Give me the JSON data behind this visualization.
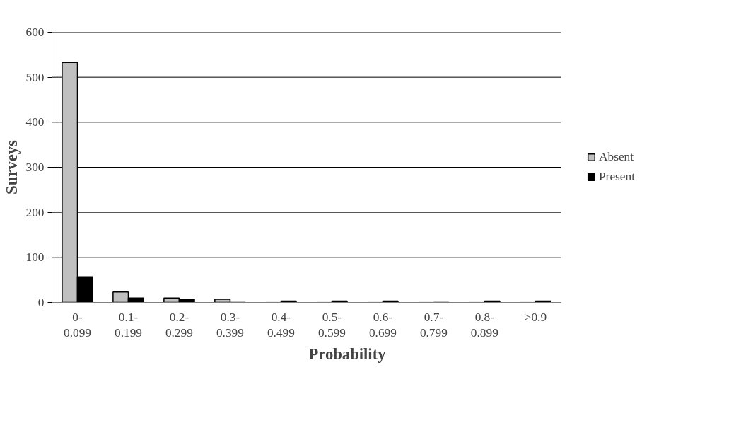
{
  "chart_data": {
    "type": "bar",
    "xlabel": "Probability",
    "ylabel": "Surveys",
    "categories": [
      "0- 0.099",
      "0.1- 0.199",
      "0.2- 0.299",
      "0.3- 0.399",
      "0.4- 0.499",
      "0.5- 0.599",
      "0.6- 0.699",
      "0.7- 0.799",
      "0.8- 0.899",
      ">0.9"
    ],
    "series": [
      {
        "name": "Absent",
        "color": "#c0c0c0",
        "values": [
          533,
          23,
          10,
          7,
          0,
          0,
          0,
          0,
          0,
          0
        ]
      },
      {
        "name": "Present",
        "color": "#000000",
        "values": [
          57,
          10,
          7,
          0,
          3,
          3,
          3,
          0,
          3,
          3
        ]
      }
    ],
    "ylim": [
      0,
      600
    ],
    "yticks": [
      0,
      100,
      200,
      300,
      400,
      500,
      600
    ],
    "grid": "y",
    "legend": "right"
  }
}
